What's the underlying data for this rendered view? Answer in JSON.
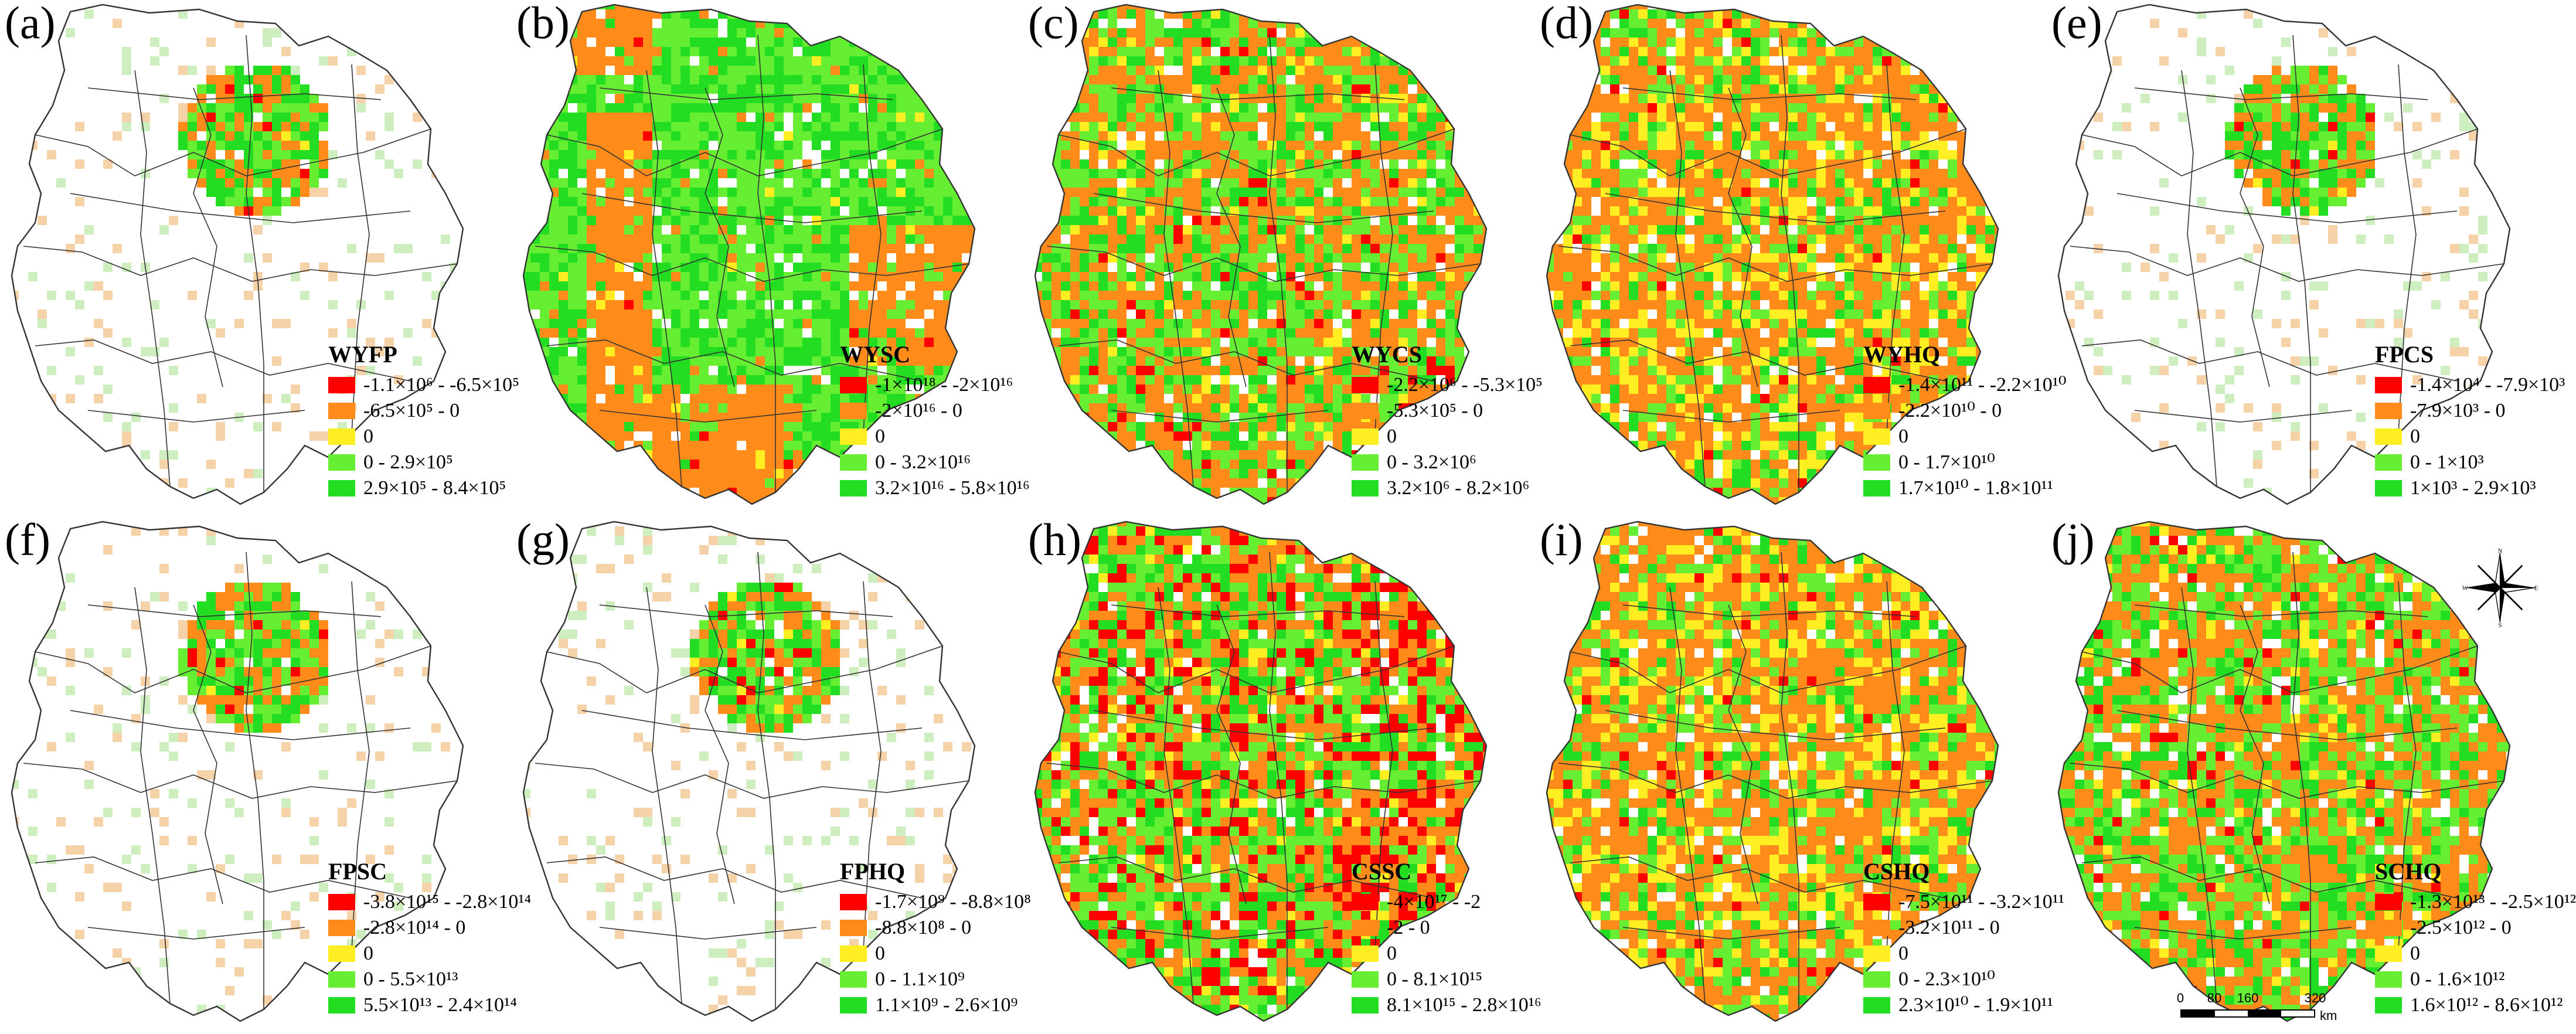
{
  "colors": {
    "class1": "#ff0000",
    "class2": "#ff8c1a",
    "class3": "#ffee22",
    "class4": "#66ee33",
    "class5": "#22dd22",
    "boundary": "#333333",
    "background": "#ffffff"
  },
  "panels": [
    {
      "letter": "(a)",
      "title": "WYFP",
      "pattern": "sparse-core",
      "classes": [
        {
          "label": "-1.1×10⁶ - -6.5×10⁵"
        },
        {
          "label": "-6.5×10⁵ - 0"
        },
        {
          "label": "0"
        },
        {
          "label": "0 - 2.9×10⁵"
        },
        {
          "label": "2.9×10⁵ - 8.4×10⁵"
        }
      ]
    },
    {
      "letter": "(b)",
      "title": "WYSC",
      "pattern": "green-orange-bands",
      "classes": [
        {
          "label": "-1×10¹⁸ - -2×10¹⁶"
        },
        {
          "label": "-2×10¹⁶ - 0"
        },
        {
          "label": "0"
        },
        {
          "label": "0 - 3.2×10¹⁶"
        },
        {
          "label": "3.2×10¹⁶ - 5.8×10¹⁶"
        }
      ]
    },
    {
      "letter": "(c)",
      "title": "WYCS",
      "pattern": "mixed-green",
      "classes": [
        {
          "label": "-2.2×10⁶ - -5.3×10⁵"
        },
        {
          "label": "-5.3×10⁵ - 0"
        },
        {
          "label": "0"
        },
        {
          "label": "0 - 3.2×10⁶"
        },
        {
          "label": "3.2×10⁶ - 8.2×10⁶"
        }
      ]
    },
    {
      "letter": "(d)",
      "title": "WYHQ",
      "pattern": "mixed-olive",
      "classes": [
        {
          "label": "-1.4×10¹¹ - -2.2×10¹⁰"
        },
        {
          "label": "-2.2×10¹⁰ - 0"
        },
        {
          "label": "0"
        },
        {
          "label": "0 - 1.7×10¹⁰"
        },
        {
          "label": "1.7×10¹⁰ - 1.8×10¹¹"
        }
      ]
    },
    {
      "letter": "(e)",
      "title": "FPCS",
      "pattern": "sparse-core",
      "classes": [
        {
          "label": "-1.4×10⁴ - -7.9×10³"
        },
        {
          "label": "-7.9×10³ - 0"
        },
        {
          "label": "0"
        },
        {
          "label": "0 - 1×10³"
        },
        {
          "label": "1×10³ - 2.9×10³"
        }
      ]
    },
    {
      "letter": "(f)",
      "title": "FPSC",
      "pattern": "sparse-core",
      "classes": [
        {
          "label": "-3.8×10¹⁵ - -2.8×10¹⁴"
        },
        {
          "label": "-2.8×10¹⁴ - 0"
        },
        {
          "label": "0"
        },
        {
          "label": "0 - 5.5×10¹³"
        },
        {
          "label": "5.5×10¹³ - 2.4×10¹⁴"
        }
      ]
    },
    {
      "letter": "(g)",
      "title": "FPHQ",
      "pattern": "sparse-core",
      "classes": [
        {
          "label": "-1.7×10⁹ - -8.8×10⁸"
        },
        {
          "label": "-8.8×10⁸ - 0"
        },
        {
          "label": "0"
        },
        {
          "label": "0 - 1.1×10⁹"
        },
        {
          "label": "1.1×10⁹ - 2.6×10⁹"
        }
      ]
    },
    {
      "letter": "(h)",
      "title": "CSSC",
      "pattern": "mixed-red",
      "classes": [
        {
          "label": "-4×10¹⁷ - -2"
        },
        {
          "label": "-2 - 0"
        },
        {
          "label": "0"
        },
        {
          "label": "0 - 8.1×10¹⁵"
        },
        {
          "label": "8.1×10¹⁵ - 2.8×10¹⁶"
        }
      ]
    },
    {
      "letter": "(i)",
      "title": "CSHQ",
      "pattern": "mixed-olive",
      "classes": [
        {
          "label": "-7.5×10¹¹ - -3.2×10¹¹"
        },
        {
          "label": "-3.2×10¹¹ - 0"
        },
        {
          "label": "0"
        },
        {
          "label": "0 - 2.3×10¹⁰"
        },
        {
          "label": "2.3×10¹⁰ - 1.9×10¹¹"
        }
      ]
    },
    {
      "letter": "(j)",
      "title": "SCHQ",
      "pattern": "mixed-green",
      "classes": [
        {
          "label": "-1.3×10¹³ - -2.5×10¹²"
        },
        {
          "label": "-2.5×10¹² - 0"
        },
        {
          "label": "0"
        },
        {
          "label": "0 - 1.6×10¹²"
        },
        {
          "label": "1.6×10¹² - 8.6×10¹²"
        }
      ]
    }
  ],
  "compass": {
    "n": "N",
    "s": "S",
    "e": "E",
    "w": "W"
  },
  "scalebar": {
    "ticks": [
      "0",
      "80",
      "160",
      "320"
    ],
    "unit": "km"
  }
}
